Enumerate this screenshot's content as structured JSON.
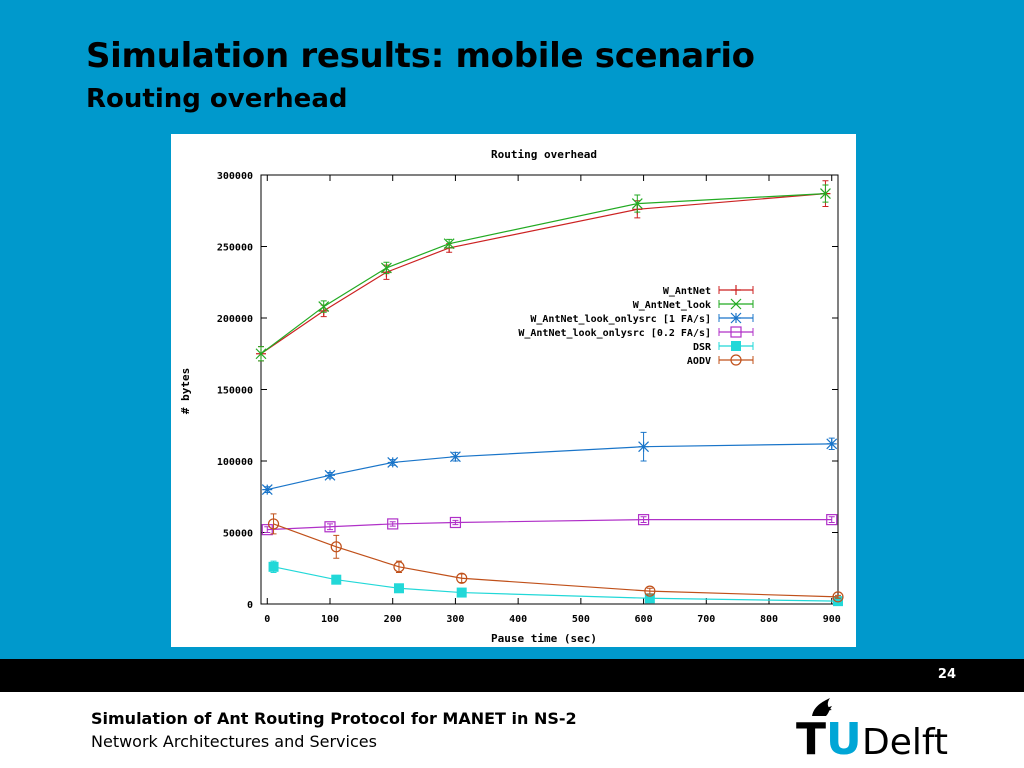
{
  "slide": {
    "title": "Simulation results: mobile scenario",
    "subtitle": "Routing overhead",
    "page_number": "24"
  },
  "footer": {
    "title": "Simulation of Ant Routing Protocol for MANET in NS-2",
    "subtitle": "Network Architectures and Services",
    "logo": {
      "tu": "TU",
      "delft": "Delft",
      "icon": "flame-icon",
      "color_t": "#000000",
      "color_u": "#00a6d6"
    }
  },
  "chart_data": {
    "type": "line",
    "title": "Routing overhead",
    "xlabel": "Pause time (sec)",
    "ylabel": "# bytes",
    "xlim": [
      -10,
      910
    ],
    "ylim": [
      0,
      300000
    ],
    "xticks": [
      0,
      100,
      200,
      300,
      400,
      500,
      600,
      700,
      800,
      900
    ],
    "yticks": [
      0,
      50000,
      100000,
      150000,
      200000,
      250000,
      300000
    ],
    "grid": false,
    "legend_position": "right",
    "series": [
      {
        "name": "W_AntNet",
        "marker": "plus",
        "color": "#cc2222",
        "x": [
          -10,
          90,
          190,
          290,
          590,
          890
        ],
        "y": [
          175000,
          205000,
          232000,
          249000,
          276000,
          287000
        ],
        "err": [
          5000,
          4000,
          5000,
          3000,
          6000,
          9000
        ]
      },
      {
        "name": "W_AntNet_look",
        "marker": "x",
        "color": "#22aa22",
        "x": [
          -10,
          90,
          190,
          290,
          590,
          890
        ],
        "y": [
          175000,
          208000,
          235000,
          252000,
          280000,
          287000
        ],
        "err": [
          5000,
          4000,
          4000,
          3000,
          6000,
          6000
        ]
      },
      {
        "name": "W_AntNet_look_onlysrc [1 FA/s]",
        "marker": "star",
        "color": "#1a75c9",
        "x": [
          0,
          100,
          200,
          300,
          600,
          900
        ],
        "y": [
          80000,
          90000,
          99000,
          103000,
          110000,
          112000
        ],
        "err": [
          2000,
          2000,
          2000,
          3000,
          10000,
          4000
        ]
      },
      {
        "name": "W_AntNet_look_onlysrc [0.2 FA/s]",
        "marker": "box",
        "color": "#b030c8",
        "x": [
          0,
          100,
          200,
          300,
          600,
          900
        ],
        "y": [
          52000,
          54000,
          56000,
          57000,
          59000,
          59000
        ],
        "err": [
          2000,
          2000,
          1500,
          1500,
          2000,
          2000
        ]
      },
      {
        "name": "DSR",
        "marker": "filled-box",
        "color": "#22d8d8",
        "x": [
          10,
          110,
          210,
          310,
          610,
          910
        ],
        "y": [
          26000,
          17000,
          11000,
          8000,
          4000,
          2000
        ],
        "err": [
          4000,
          3000,
          2000,
          2000,
          1000,
          1000
        ]
      },
      {
        "name": "AODV",
        "marker": "circle",
        "color": "#c0501a",
        "x": [
          10,
          110,
          210,
          310,
          610,
          910
        ],
        "y": [
          56000,
          40000,
          26000,
          18000,
          9000,
          5000
        ],
        "err": [
          7000,
          8000,
          4000,
          3000,
          2000,
          1000
        ]
      }
    ]
  }
}
